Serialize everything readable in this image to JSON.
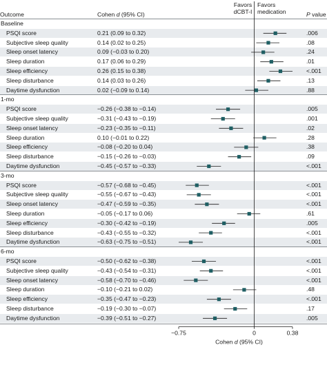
{
  "headers": {
    "outcome": "Outcome",
    "cohen": "Cohen d (95% CI)",
    "favors_left_1": "Favors",
    "favors_left_2": "dCBT-I",
    "favors_right_1": "Favors",
    "favors_right_2": "medication",
    "pvalue": "P value"
  },
  "axis": {
    "label": "Cohen d (95% CI)",
    "ticks": [
      "−0.75",
      "0",
      "0.38"
    ]
  },
  "colors": {
    "point": "#1f5f64",
    "shade": "#e8ebee"
  },
  "chart_data": {
    "type": "scatter",
    "title": "",
    "xlabel": "Cohen d (95% CI)",
    "xlim": [
      -0.75,
      0.38
    ],
    "xticks": [
      -0.75,
      0,
      0.38
    ],
    "sections": [
      {
        "name": "Baseline",
        "rows": [
          {
            "outcome": "PSQI score",
            "ci_text": "0.21 (0.09 to 0.32)",
            "d": 0.21,
            "lo": 0.09,
            "hi": 0.32,
            "p": ".006"
          },
          {
            "outcome": "Subjective sleep quality",
            "ci_text": "0.14 (0.02 to 0.25)",
            "d": 0.14,
            "lo": 0.02,
            "hi": 0.25,
            "p": ".08"
          },
          {
            "outcome": "Sleep onset latency",
            "ci_text": "0.09 (−0.03 to 0.20)",
            "d": 0.09,
            "lo": -0.03,
            "hi": 0.2,
            "p": ".24"
          },
          {
            "outcome": "Sleep duration",
            "ci_text": "0.17 (0.06 to 0.29)",
            "d": 0.17,
            "lo": 0.06,
            "hi": 0.29,
            "p": ".01"
          },
          {
            "outcome": "Sleep efficiency",
            "ci_text": "0.26 (0.15 to 0.38)",
            "d": 0.26,
            "lo": 0.15,
            "hi": 0.38,
            "p": "<.001"
          },
          {
            "outcome": "Sleep disturbance",
            "ci_text": "0.14 (0.03 to 0.26)",
            "d": 0.14,
            "lo": 0.03,
            "hi": 0.26,
            "p": ".13"
          },
          {
            "outcome": "Daytime dysfunction",
            "ci_text": "0.02 (−0.09 to 0.14)",
            "d": 0.02,
            "lo": -0.09,
            "hi": 0.14,
            "p": ".88"
          }
        ]
      },
      {
        "name": "1-mo",
        "rows": [
          {
            "outcome": "PSQI score",
            "ci_text": "−0.26 (−0.38 to −0.14)",
            "d": -0.26,
            "lo": -0.38,
            "hi": -0.14,
            "p": ".005"
          },
          {
            "outcome": "Subjective sleep quality",
            "ci_text": "−0.31 (−0.43 to −0.19)",
            "d": -0.31,
            "lo": -0.43,
            "hi": -0.19,
            "p": ".001"
          },
          {
            "outcome": "Sleep onset latency",
            "ci_text": "−0.23 (−0.35 to −0.11)",
            "d": -0.23,
            "lo": -0.35,
            "hi": -0.11,
            "p": ".02"
          },
          {
            "outcome": "Sleep duration",
            "ci_text": "0.10 (−0.01 to 0.22)",
            "d": 0.1,
            "lo": -0.01,
            "hi": 0.22,
            "p": ".28"
          },
          {
            "outcome": "Sleep efficiency",
            "ci_text": "−0.08 (−0.20 to 0.04)",
            "d": -0.08,
            "lo": -0.2,
            "hi": 0.04,
            "p": ".38"
          },
          {
            "outcome": "Sleep disturbance",
            "ci_text": "−0.15 (−0.26 to −0.03)",
            "d": -0.15,
            "lo": -0.26,
            "hi": -0.03,
            "p": ".09"
          },
          {
            "outcome": "Daytime dysfunction",
            "ci_text": "−0.45 (−0.57 to −0.33)",
            "d": -0.45,
            "lo": -0.57,
            "hi": -0.33,
            "p": "<.001"
          }
        ]
      },
      {
        "name": "3-mo",
        "rows": [
          {
            "outcome": "PSQI score",
            "ci_text": "−0.57 (−0.68 to −0.45)",
            "d": -0.57,
            "lo": -0.68,
            "hi": -0.45,
            "p": "<.001"
          },
          {
            "outcome": "Subjective sleep quality",
            "ci_text": "−0.55 (−0.67 to −0.43)",
            "d": -0.55,
            "lo": -0.67,
            "hi": -0.43,
            "p": "<.001"
          },
          {
            "outcome": "Sleep onset latency",
            "ci_text": "−0.47 (−0.59 to −0.35)",
            "d": -0.47,
            "lo": -0.59,
            "hi": -0.35,
            "p": "<.001"
          },
          {
            "outcome": "Sleep duration",
            "ci_text": "−0.05 (−0.17 to 0.06)",
            "d": -0.05,
            "lo": -0.17,
            "hi": 0.06,
            "p": ".61"
          },
          {
            "outcome": "Sleep efficiency",
            "ci_text": "−0.30 (−0.42 to −0.19)",
            "d": -0.3,
            "lo": -0.42,
            "hi": -0.19,
            "p": ".005"
          },
          {
            "outcome": "Sleep disturbance",
            "ci_text": "−0.43 (−0.55 to −0.32)",
            "d": -0.43,
            "lo": -0.55,
            "hi": -0.32,
            "p": "<.001"
          },
          {
            "outcome": "Daytime dysfunction",
            "ci_text": "−0.63 (−0.75 to −0.51)",
            "d": -0.63,
            "lo": -0.75,
            "hi": -0.51,
            "p": "<.001"
          }
        ]
      },
      {
        "name": "6-mo",
        "rows": [
          {
            "outcome": "PSQI score",
            "ci_text": "−0.50 (−0.62 to −0.38)",
            "d": -0.5,
            "lo": -0.62,
            "hi": -0.38,
            "p": "<.001"
          },
          {
            "outcome": "Subjective sleep quality",
            "ci_text": "−0.43 (−0.54 to −0.31)",
            "d": -0.43,
            "lo": -0.54,
            "hi": -0.31,
            "p": "<.001"
          },
          {
            "outcome": "Sleep onset latency",
            "ci_text": "−0.58 (−0.70 to −0.46)",
            "d": -0.58,
            "lo": -0.7,
            "hi": -0.46,
            "p": "<.001"
          },
          {
            "outcome": "Sleep duration",
            "ci_text": "−0.10 (−0.21 to 0.02)",
            "d": -0.1,
            "lo": -0.21,
            "hi": 0.02,
            "p": ".48"
          },
          {
            "outcome": "Sleep efficiency",
            "ci_text": "−0.35 (−0.47 to −0.23)",
            "d": -0.35,
            "lo": -0.47,
            "hi": -0.23,
            "p": "<.001"
          },
          {
            "outcome": "Sleep disturbance",
            "ci_text": "−0.19 (−0.30 to −0.07)",
            "d": -0.19,
            "lo": -0.3,
            "hi": -0.07,
            "p": ".17"
          },
          {
            "outcome": "Daytime dysfunction",
            "ci_text": "−0.39 (−0.51 to −0.27)",
            "d": -0.39,
            "lo": -0.51,
            "hi": -0.27,
            "p": ".005"
          }
        ]
      }
    ]
  }
}
